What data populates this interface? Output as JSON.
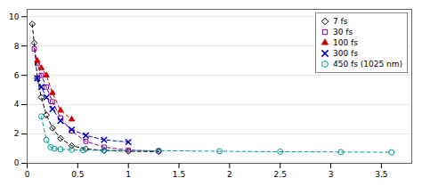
{
  "chart_data": {
    "type": "line",
    "series": [
      {
        "name": "7 fs",
        "color": "#000000",
        "marker": "diamond",
        "line_style": "dashed",
        "x": [
          0.05,
          0.07,
          0.1,
          0.14,
          0.19,
          0.25,
          0.33,
          0.44,
          0.58,
          0.76,
          1.0,
          1.3
        ],
        "values": [
          9.5,
          8.2,
          5.8,
          4.5,
          3.3,
          2.4,
          1.7,
          1.2,
          0.98,
          0.88,
          0.82,
          0.8
        ]
      },
      {
        "name": "30 fs",
        "color": "#880088",
        "marker": "square",
        "line_style": "dashed",
        "x": [
          0.07,
          0.1,
          0.14,
          0.19,
          0.25,
          0.33,
          0.44,
          0.58,
          0.76,
          1.0,
          1.3
        ],
        "values": [
          7.8,
          6.8,
          6.0,
          5.2,
          4.2,
          3.1,
          2.2,
          1.5,
          1.1,
          0.9,
          0.83
        ]
      },
      {
        "name": "100 fs",
        "color": "#cc0000",
        "marker": "triangle",
        "line_style": "dashed",
        "x": [
          0.1,
          0.14,
          0.19,
          0.25,
          0.33,
          0.44
        ],
        "values": [
          7.0,
          6.5,
          6.0,
          4.8,
          3.6,
          3.0
        ]
      },
      {
        "name": "300 fs",
        "color": "#0000cc",
        "marker": "x",
        "line_style": "dashed",
        "x": [
          0.1,
          0.14,
          0.19,
          0.25,
          0.33,
          0.44,
          0.58,
          0.76,
          1.0
        ],
        "values": [
          5.8,
          5.2,
          4.5,
          3.7,
          2.9,
          2.3,
          1.9,
          1.6,
          1.45
        ]
      },
      {
        "name": "450 fs (1025 nm)",
        "color": "#009999",
        "marker": "circle",
        "line_style": "dashed",
        "x": [
          0.14,
          0.19,
          0.23,
          0.27,
          0.33,
          0.44,
          0.55,
          0.76,
          1.3,
          1.9,
          2.5,
          3.1,
          3.6
        ],
        "values": [
          3.2,
          1.6,
          1.1,
          1.0,
          0.95,
          0.92,
          0.9,
          0.88,
          0.86,
          0.82,
          0.79,
          0.77,
          0.75
        ]
      }
    ],
    "xlim": [
      0.0,
      3.8
    ],
    "xticks": [
      0,
      0.5,
      1,
      1.5,
      2,
      2.5,
      3,
      3.5
    ],
    "ylim": [
      0.0,
      10.5
    ],
    "yticks": [
      0,
      2,
      4,
      6,
      8,
      10
    ],
    "grid": "y",
    "legend": "upper right"
  }
}
